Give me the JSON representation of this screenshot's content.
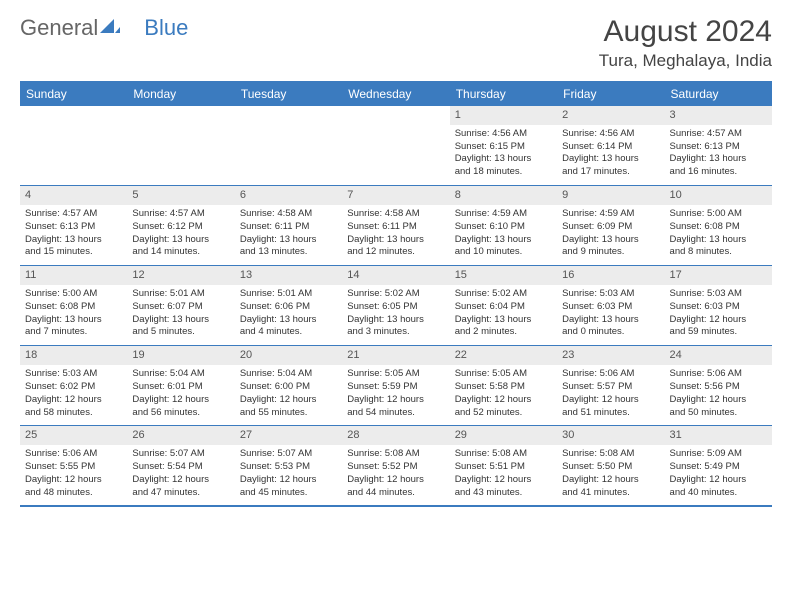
{
  "logo": {
    "text1": "General",
    "text2": "Blue"
  },
  "title": "August 2024",
  "location": "Tura, Meghalaya, India",
  "colors": {
    "brand": "#3b7bbf",
    "header_text": "#ffffff",
    "daynum_bg": "#ececec",
    "text": "#333333",
    "title_color": "#444444"
  },
  "weekdays": [
    "Sunday",
    "Monday",
    "Tuesday",
    "Wednesday",
    "Thursday",
    "Friday",
    "Saturday"
  ],
  "weeks": [
    [
      {
        "day": "",
        "sunrise": "",
        "sunset": "",
        "daylight1": "",
        "daylight2": ""
      },
      {
        "day": "",
        "sunrise": "",
        "sunset": "",
        "daylight1": "",
        "daylight2": ""
      },
      {
        "day": "",
        "sunrise": "",
        "sunset": "",
        "daylight1": "",
        "daylight2": ""
      },
      {
        "day": "",
        "sunrise": "",
        "sunset": "",
        "daylight1": "",
        "daylight2": ""
      },
      {
        "day": "1",
        "sunrise": "Sunrise: 4:56 AM",
        "sunset": "Sunset: 6:15 PM",
        "daylight1": "Daylight: 13 hours",
        "daylight2": "and 18 minutes."
      },
      {
        "day": "2",
        "sunrise": "Sunrise: 4:56 AM",
        "sunset": "Sunset: 6:14 PM",
        "daylight1": "Daylight: 13 hours",
        "daylight2": "and 17 minutes."
      },
      {
        "day": "3",
        "sunrise": "Sunrise: 4:57 AM",
        "sunset": "Sunset: 6:13 PM",
        "daylight1": "Daylight: 13 hours",
        "daylight2": "and 16 minutes."
      }
    ],
    [
      {
        "day": "4",
        "sunrise": "Sunrise: 4:57 AM",
        "sunset": "Sunset: 6:13 PM",
        "daylight1": "Daylight: 13 hours",
        "daylight2": "and 15 minutes."
      },
      {
        "day": "5",
        "sunrise": "Sunrise: 4:57 AM",
        "sunset": "Sunset: 6:12 PM",
        "daylight1": "Daylight: 13 hours",
        "daylight2": "and 14 minutes."
      },
      {
        "day": "6",
        "sunrise": "Sunrise: 4:58 AM",
        "sunset": "Sunset: 6:11 PM",
        "daylight1": "Daylight: 13 hours",
        "daylight2": "and 13 minutes."
      },
      {
        "day": "7",
        "sunrise": "Sunrise: 4:58 AM",
        "sunset": "Sunset: 6:11 PM",
        "daylight1": "Daylight: 13 hours",
        "daylight2": "and 12 minutes."
      },
      {
        "day": "8",
        "sunrise": "Sunrise: 4:59 AM",
        "sunset": "Sunset: 6:10 PM",
        "daylight1": "Daylight: 13 hours",
        "daylight2": "and 10 minutes."
      },
      {
        "day": "9",
        "sunrise": "Sunrise: 4:59 AM",
        "sunset": "Sunset: 6:09 PM",
        "daylight1": "Daylight: 13 hours",
        "daylight2": "and 9 minutes."
      },
      {
        "day": "10",
        "sunrise": "Sunrise: 5:00 AM",
        "sunset": "Sunset: 6:08 PM",
        "daylight1": "Daylight: 13 hours",
        "daylight2": "and 8 minutes."
      }
    ],
    [
      {
        "day": "11",
        "sunrise": "Sunrise: 5:00 AM",
        "sunset": "Sunset: 6:08 PM",
        "daylight1": "Daylight: 13 hours",
        "daylight2": "and 7 minutes."
      },
      {
        "day": "12",
        "sunrise": "Sunrise: 5:01 AM",
        "sunset": "Sunset: 6:07 PM",
        "daylight1": "Daylight: 13 hours",
        "daylight2": "and 5 minutes."
      },
      {
        "day": "13",
        "sunrise": "Sunrise: 5:01 AM",
        "sunset": "Sunset: 6:06 PM",
        "daylight1": "Daylight: 13 hours",
        "daylight2": "and 4 minutes."
      },
      {
        "day": "14",
        "sunrise": "Sunrise: 5:02 AM",
        "sunset": "Sunset: 6:05 PM",
        "daylight1": "Daylight: 13 hours",
        "daylight2": "and 3 minutes."
      },
      {
        "day": "15",
        "sunrise": "Sunrise: 5:02 AM",
        "sunset": "Sunset: 6:04 PM",
        "daylight1": "Daylight: 13 hours",
        "daylight2": "and 2 minutes."
      },
      {
        "day": "16",
        "sunrise": "Sunrise: 5:03 AM",
        "sunset": "Sunset: 6:03 PM",
        "daylight1": "Daylight: 13 hours",
        "daylight2": "and 0 minutes."
      },
      {
        "day": "17",
        "sunrise": "Sunrise: 5:03 AM",
        "sunset": "Sunset: 6:03 PM",
        "daylight1": "Daylight: 12 hours",
        "daylight2": "and 59 minutes."
      }
    ],
    [
      {
        "day": "18",
        "sunrise": "Sunrise: 5:03 AM",
        "sunset": "Sunset: 6:02 PM",
        "daylight1": "Daylight: 12 hours",
        "daylight2": "and 58 minutes."
      },
      {
        "day": "19",
        "sunrise": "Sunrise: 5:04 AM",
        "sunset": "Sunset: 6:01 PM",
        "daylight1": "Daylight: 12 hours",
        "daylight2": "and 56 minutes."
      },
      {
        "day": "20",
        "sunrise": "Sunrise: 5:04 AM",
        "sunset": "Sunset: 6:00 PM",
        "daylight1": "Daylight: 12 hours",
        "daylight2": "and 55 minutes."
      },
      {
        "day": "21",
        "sunrise": "Sunrise: 5:05 AM",
        "sunset": "Sunset: 5:59 PM",
        "daylight1": "Daylight: 12 hours",
        "daylight2": "and 54 minutes."
      },
      {
        "day": "22",
        "sunrise": "Sunrise: 5:05 AM",
        "sunset": "Sunset: 5:58 PM",
        "daylight1": "Daylight: 12 hours",
        "daylight2": "and 52 minutes."
      },
      {
        "day": "23",
        "sunrise": "Sunrise: 5:06 AM",
        "sunset": "Sunset: 5:57 PM",
        "daylight1": "Daylight: 12 hours",
        "daylight2": "and 51 minutes."
      },
      {
        "day": "24",
        "sunrise": "Sunrise: 5:06 AM",
        "sunset": "Sunset: 5:56 PM",
        "daylight1": "Daylight: 12 hours",
        "daylight2": "and 50 minutes."
      }
    ],
    [
      {
        "day": "25",
        "sunrise": "Sunrise: 5:06 AM",
        "sunset": "Sunset: 5:55 PM",
        "daylight1": "Daylight: 12 hours",
        "daylight2": "and 48 minutes."
      },
      {
        "day": "26",
        "sunrise": "Sunrise: 5:07 AM",
        "sunset": "Sunset: 5:54 PM",
        "daylight1": "Daylight: 12 hours",
        "daylight2": "and 47 minutes."
      },
      {
        "day": "27",
        "sunrise": "Sunrise: 5:07 AM",
        "sunset": "Sunset: 5:53 PM",
        "daylight1": "Daylight: 12 hours",
        "daylight2": "and 45 minutes."
      },
      {
        "day": "28",
        "sunrise": "Sunrise: 5:08 AM",
        "sunset": "Sunset: 5:52 PM",
        "daylight1": "Daylight: 12 hours",
        "daylight2": "and 44 minutes."
      },
      {
        "day": "29",
        "sunrise": "Sunrise: 5:08 AM",
        "sunset": "Sunset: 5:51 PM",
        "daylight1": "Daylight: 12 hours",
        "daylight2": "and 43 minutes."
      },
      {
        "day": "30",
        "sunrise": "Sunrise: 5:08 AM",
        "sunset": "Sunset: 5:50 PM",
        "daylight1": "Daylight: 12 hours",
        "daylight2": "and 41 minutes."
      },
      {
        "day": "31",
        "sunrise": "Sunrise: 5:09 AM",
        "sunset": "Sunset: 5:49 PM",
        "daylight1": "Daylight: 12 hours",
        "daylight2": "and 40 minutes."
      }
    ]
  ]
}
